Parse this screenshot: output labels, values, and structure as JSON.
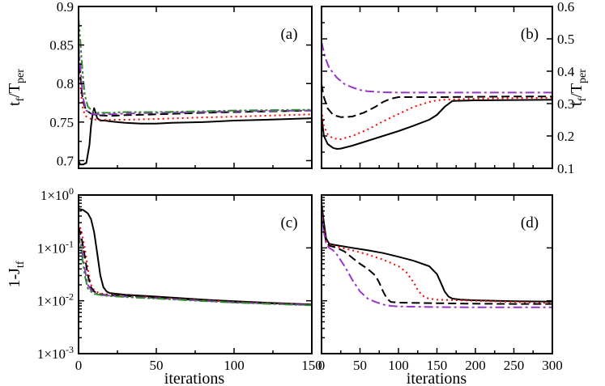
{
  "figure": {
    "shared_xlabel_left": "iterations",
    "shared_xlabel_right": "iterations"
  },
  "chart_data": [
    {
      "panel": "(a)",
      "type": "line",
      "title": "",
      "xlabel": "",
      "ylabel": "t_f/T_per",
      "xlim": [
        0,
        150
      ],
      "ylim": [
        0.69,
        0.9
      ],
      "yscale": "linear",
      "xticks": [
        0,
        50,
        100,
        150
      ],
      "xtick_labels": [
        "",
        "",
        "",
        ""
      ],
      "yticks": [
        0.7,
        0.75,
        0.8,
        0.85,
        0.9
      ],
      "ytick_labels": [
        "0.7",
        "0.75",
        "0.8",
        "0.85",
        "0.9"
      ],
      "series": [
        {
          "name": "black solid",
          "color": "#000000",
          "dash": "solid",
          "x": [
            0,
            1,
            3,
            5,
            7,
            8,
            9,
            10,
            11,
            12,
            14,
            17,
            20,
            25,
            30,
            40,
            50,
            60,
            80,
            100,
            120,
            150
          ],
          "y": [
            0.7,
            0.695,
            0.695,
            0.697,
            0.72,
            0.745,
            0.76,
            0.768,
            0.762,
            0.755,
            0.752,
            0.752,
            0.751,
            0.75,
            0.749,
            0.748,
            0.748,
            0.749,
            0.75,
            0.752,
            0.753,
            0.755
          ]
        },
        {
          "name": "red dotted",
          "color": "#ff0000",
          "dash": "dotted",
          "x": [
            0,
            1,
            2,
            3,
            5,
            8,
            12,
            20,
            30,
            50,
            80,
            100,
            150
          ],
          "y": [
            0.82,
            0.8,
            0.78,
            0.765,
            0.757,
            0.754,
            0.753,
            0.753,
            0.753,
            0.754,
            0.756,
            0.757,
            0.76
          ]
        },
        {
          "name": "black dashed",
          "color": "#000000",
          "dash": "dashed",
          "x": [
            0,
            1,
            2,
            3,
            5,
            8,
            12,
            20,
            30,
            50,
            80,
            100,
            150
          ],
          "y": [
            0.84,
            0.815,
            0.79,
            0.775,
            0.765,
            0.761,
            0.759,
            0.758,
            0.759,
            0.76,
            0.762,
            0.763,
            0.765
          ]
        },
        {
          "name": "purple dash-dot",
          "color": "#9933cc",
          "dash": "dashdot",
          "x": [
            0,
            1,
            2,
            3,
            5,
            8,
            12,
            20,
            30,
            50,
            80,
            100,
            150
          ],
          "y": [
            0.85,
            0.825,
            0.8,
            0.78,
            0.765,
            0.761,
            0.76,
            0.76,
            0.761,
            0.762,
            0.763,
            0.764,
            0.765
          ]
        },
        {
          "name": "green dash-dot-dot",
          "color": "#2e8b2e",
          "dash": "dashdotdot",
          "x": [
            0,
            1,
            2,
            3,
            4,
            6,
            9,
            12,
            20,
            30,
            50,
            80,
            100,
            150
          ],
          "y": [
            0.885,
            0.86,
            0.83,
            0.805,
            0.785,
            0.77,
            0.764,
            0.762,
            0.762,
            0.763,
            0.763,
            0.764,
            0.765,
            0.766
          ]
        }
      ]
    },
    {
      "panel": "(b)",
      "type": "line",
      "title": "",
      "xlabel": "",
      "ylabel": "t_f/T_per",
      "ylabel_side": "right",
      "xlim": [
        0,
        300
      ],
      "ylim": [
        0.1,
        0.6
      ],
      "yscale": "linear",
      "xticks": [
        0,
        50,
        100,
        150,
        200,
        250,
        300
      ],
      "xtick_labels": [
        "",
        "",
        "",
        "",
        "",
        "",
        ""
      ],
      "yticks": [
        0.1,
        0.2,
        0.3,
        0.4,
        0.5,
        0.6
      ],
      "ytick_labels": [
        "0.1",
        "0.2",
        "0.3",
        "0.4",
        "0.5",
        "0.6"
      ],
      "series": [
        {
          "name": "black solid",
          "color": "#000000",
          "dash": "solid",
          "x": [
            0,
            3,
            8,
            15,
            20,
            25,
            40,
            60,
            80,
            100,
            120,
            140,
            150,
            160,
            170,
            200,
            250,
            300
          ],
          "y": [
            0.26,
            0.2,
            0.175,
            0.163,
            0.16,
            0.161,
            0.17,
            0.185,
            0.2,
            0.215,
            0.232,
            0.25,
            0.265,
            0.29,
            0.308,
            0.31,
            0.311,
            0.312
          ]
        },
        {
          "name": "red dotted",
          "color": "#ff0000",
          "dash": "dotted",
          "x": [
            0,
            3,
            8,
            15,
            25,
            40,
            60,
            80,
            100,
            120,
            140,
            150,
            160,
            170,
            200,
            250,
            300
          ],
          "y": [
            0.28,
            0.23,
            0.205,
            0.192,
            0.19,
            0.2,
            0.22,
            0.245,
            0.268,
            0.29,
            0.305,
            0.31,
            0.312,
            0.313,
            0.315,
            0.317,
            0.318
          ]
        },
        {
          "name": "black dashed",
          "color": "#000000",
          "dash": "dashed",
          "x": [
            0,
            3,
            8,
            15,
            25,
            40,
            55,
            70,
            80,
            90,
            100,
            110,
            150,
            200,
            250,
            300
          ],
          "y": [
            0.36,
            0.32,
            0.285,
            0.265,
            0.258,
            0.26,
            0.272,
            0.29,
            0.305,
            0.315,
            0.32,
            0.32,
            0.32,
            0.321,
            0.322,
            0.322
          ]
        },
        {
          "name": "purple dash-dot",
          "color": "#9933cc",
          "dash": "dashdot",
          "x": [
            0,
            5,
            10,
            20,
            30,
            40,
            50,
            60,
            80,
            100,
            150,
            200,
            250,
            300
          ],
          "y": [
            0.49,
            0.44,
            0.41,
            0.38,
            0.36,
            0.35,
            0.342,
            0.338,
            0.335,
            0.334,
            0.334,
            0.334,
            0.334,
            0.334
          ]
        }
      ]
    },
    {
      "panel": "(c)",
      "type": "line",
      "title": "",
      "xlabel": "iterations",
      "ylabel": "1-J_tf",
      "xlim": [
        0,
        150
      ],
      "ylim": [
        0.001,
        1
      ],
      "yscale": "log",
      "xticks": [
        0,
        50,
        100,
        150
      ],
      "xtick_labels": [
        "0",
        "50",
        "100",
        "150"
      ],
      "yticks": [
        0.001,
        0.01,
        0.1,
        1
      ],
      "ytick_labels": [
        {
          "mantissa": "1×10",
          "exp": "-3"
        },
        {
          "mantissa": "1×10",
          "exp": "-2"
        },
        {
          "mantissa": "1×10",
          "exp": "-1"
        },
        {
          "mantissa": "1×10",
          "exp": "0"
        }
      ],
      "series": [
        {
          "name": "black solid",
          "color": "#000000",
          "dash": "solid",
          "x": [
            0,
            3,
            6,
            8,
            10,
            12,
            14,
            16,
            18,
            20,
            25,
            30,
            50,
            80,
            100,
            120,
            150
          ],
          "y": [
            0.55,
            0.52,
            0.45,
            0.35,
            0.2,
            0.08,
            0.03,
            0.018,
            0.015,
            0.014,
            0.0135,
            0.013,
            0.012,
            0.0105,
            0.0098,
            0.0092,
            0.0085
          ]
        },
        {
          "name": "red dotted",
          "color": "#ff0000",
          "dash": "dotted",
          "x": [
            0,
            2,
            4,
            6,
            8,
            10,
            13,
            16,
            20,
            30,
            50,
            100,
            150
          ],
          "y": [
            0.3,
            0.2,
            0.1,
            0.04,
            0.02,
            0.016,
            0.014,
            0.0135,
            0.013,
            0.0125,
            0.0115,
            0.0095,
            0.0085
          ]
        },
        {
          "name": "black dashed",
          "color": "#000000",
          "dash": "dashed",
          "x": [
            0,
            2,
            4,
            6,
            8,
            10,
            13,
            16,
            20,
            30,
            50,
            100,
            150
          ],
          "y": [
            0.25,
            0.15,
            0.07,
            0.03,
            0.018,
            0.015,
            0.0135,
            0.013,
            0.0128,
            0.0123,
            0.0114,
            0.0094,
            0.0084
          ]
        },
        {
          "name": "purple dash-dot",
          "color": "#9933cc",
          "dash": "dashdot",
          "x": [
            0,
            2,
            4,
            6,
            8,
            10,
            13,
            16,
            20,
            30,
            50,
            100,
            150
          ],
          "y": [
            0.2,
            0.1,
            0.04,
            0.02,
            0.016,
            0.014,
            0.0132,
            0.0128,
            0.0125,
            0.012,
            0.0112,
            0.0093,
            0.0083
          ]
        },
        {
          "name": "green dash-dot-dot",
          "color": "#2e8b2e",
          "dash": "dashdotdot",
          "x": [
            0,
            2,
            4,
            6,
            8,
            10,
            13,
            16,
            20,
            30,
            50,
            100,
            150
          ],
          "y": [
            0.18,
            0.08,
            0.03,
            0.017,
            0.015,
            0.0135,
            0.013,
            0.0126,
            0.0123,
            0.0118,
            0.011,
            0.0092,
            0.0082
          ]
        }
      ]
    },
    {
      "panel": "(d)",
      "type": "line",
      "title": "",
      "xlabel": "iterations",
      "ylabel": "",
      "xlim": [
        0,
        300
      ],
      "ylim": [
        0.001,
        1
      ],
      "yscale": "log",
      "xticks": [
        0,
        50,
        100,
        150,
        200,
        250,
        300
      ],
      "xtick_labels": [
        "0",
        "50",
        "100",
        "150",
        "200",
        "250",
        "300"
      ],
      "yticks": [
        0.001,
        0.01,
        0.1,
        1
      ],
      "ytick_labels": [
        "",
        "",
        "",
        ""
      ],
      "series": [
        {
          "name": "black solid",
          "color": "#000000",
          "dash": "solid",
          "x": [
            0,
            3,
            6,
            10,
            15,
            20,
            40,
            60,
            80,
            100,
            120,
            140,
            150,
            155,
            160,
            165,
            170,
            180,
            200,
            250,
            300
          ],
          "y": [
            0.7,
            0.3,
            0.15,
            0.12,
            0.115,
            0.112,
            0.1,
            0.09,
            0.08,
            0.068,
            0.057,
            0.045,
            0.032,
            0.022,
            0.015,
            0.012,
            0.011,
            0.0105,
            0.0102,
            0.0098,
            0.0096
          ]
        },
        {
          "name": "red dotted",
          "color": "#ff0000",
          "dash": "dotted",
          "x": [
            0,
            3,
            6,
            10,
            15,
            20,
            40,
            60,
            80,
            100,
            110,
            120,
            125,
            130,
            135,
            140,
            150,
            200,
            250,
            300
          ],
          "y": [
            0.6,
            0.25,
            0.14,
            0.115,
            0.11,
            0.105,
            0.09,
            0.075,
            0.06,
            0.045,
            0.035,
            0.022,
            0.016,
            0.013,
            0.0115,
            0.011,
            0.0105,
            0.01,
            0.0095,
            0.009
          ]
        },
        {
          "name": "black dashed",
          "color": "#000000",
          "dash": "dashed",
          "x": [
            0,
            3,
            6,
            10,
            15,
            20,
            30,
            40,
            50,
            60,
            70,
            75,
            80,
            85,
            90,
            100,
            150,
            200,
            250,
            300
          ],
          "y": [
            0.55,
            0.22,
            0.13,
            0.11,
            0.105,
            0.1,
            0.085,
            0.065,
            0.05,
            0.04,
            0.03,
            0.022,
            0.015,
            0.011,
            0.0095,
            0.0092,
            0.009,
            0.0088,
            0.0087,
            0.0087
          ]
        },
        {
          "name": "purple dash-dot",
          "color": "#9933cc",
          "dash": "dashdot",
          "x": [
            0,
            3,
            6,
            10,
            15,
            20,
            30,
            40,
            50,
            60,
            70,
            80,
            90,
            100,
            150,
            200,
            250,
            300
          ],
          "y": [
            0.5,
            0.2,
            0.12,
            0.1,
            0.09,
            0.075,
            0.045,
            0.025,
            0.015,
            0.011,
            0.0095,
            0.0085,
            0.008,
            0.0078,
            0.0076,
            0.0075,
            0.0075,
            0.0075
          ]
        }
      ]
    }
  ]
}
